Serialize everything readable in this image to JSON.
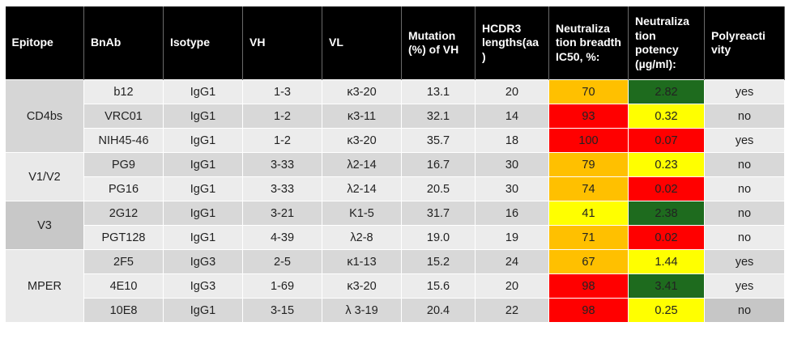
{
  "headers": [
    "Epitope",
    "BnAb",
    "Isotype",
    "VH",
    "VL",
    "Mutation (%) of VH",
    "HCDR3 lengths(aa )",
    "Neutraliza tion breadth IC50, %:",
    "Neutraliza tion potency (µg/ml):",
    "Polyreacti vity"
  ],
  "groups": [
    {
      "epitope": "CD4bs",
      "rows": [
        {
          "bnab": "b12",
          "isotype": "IgG1",
          "vh": "1-3",
          "vl": "κ3-20",
          "mutation": "13.1",
          "hcdr3": "20",
          "breadth": "70",
          "potency": "2.82",
          "poly": "yes",
          "breadth_color": "#ffc000",
          "potency_color": "#1e6b1e"
        },
        {
          "bnab": "VRC01",
          "isotype": "IgG1",
          "vh": "1-2",
          "vl": "κ3-11",
          "mutation": "32.1",
          "hcdr3": "14",
          "breadth": "93",
          "potency": "0.32",
          "poly": "no",
          "breadth_color": "#ff0000",
          "potency_color": "#ffff00"
        },
        {
          "bnab": "NIH45-46",
          "isotype": "IgG1",
          "vh": "1-2",
          "vl": "κ3-20",
          "mutation": "35.7",
          "hcdr3": "18",
          "breadth": "100",
          "potency": "0.07",
          "poly": "yes",
          "breadth_color": "#ff0000",
          "potency_color": "#ff0000"
        }
      ]
    },
    {
      "epitope": "V1/V2",
      "rows": [
        {
          "bnab": "PG9",
          "isotype": "IgG1",
          "vh": "3-33",
          "vl": "λ2-14",
          "mutation": "16.7",
          "hcdr3": "30",
          "breadth": "79",
          "potency": "0.23",
          "poly": "no",
          "breadth_color": "#ffc000",
          "potency_color": "#ffff00"
        },
        {
          "bnab": "PG16",
          "isotype": "IgG1",
          "vh": "3-33",
          "vl": "λ2-14",
          "mutation": "20.5",
          "hcdr3": "30",
          "breadth": "74",
          "potency": "0.02",
          "poly": "no",
          "breadth_color": "#ffc000",
          "potency_color": "#ff0000"
        }
      ]
    },
    {
      "epitope": "V3",
      "rows": [
        {
          "bnab": "2G12",
          "isotype": "IgG1",
          "vh": "3-21",
          "vl": "K1-5",
          "mutation": "31.7",
          "hcdr3": "16",
          "breadth": "41",
          "potency": "2.38",
          "poly": "no",
          "breadth_color": "#ffff00",
          "potency_color": "#1e6b1e"
        },
        {
          "bnab": "PGT128",
          "isotype": "IgG1",
          "vh": "4-39",
          "vl": "λ2-8",
          "mutation": "19.0",
          "hcdr3": "19",
          "breadth": "71",
          "potency": "0.02",
          "poly": "no",
          "breadth_color": "#ffc000",
          "potency_color": "#ff0000"
        }
      ]
    },
    {
      "epitope": "MPER",
      "rows": [
        {
          "bnab": "2F5",
          "isotype": "IgG3",
          "vh": "2-5",
          "vl": "κ1-13",
          "mutation": "15.2",
          "hcdr3": "24",
          "breadth": "67",
          "potency": "1.44",
          "poly": "yes",
          "breadth_color": "#ffc000",
          "potency_color": "#ffff00"
        },
        {
          "bnab": "4E10",
          "isotype": "IgG3",
          "vh": "1-69",
          "vl": "κ3-20",
          "mutation": "15.6",
          "hcdr3": "20",
          "breadth": "98",
          "potency": "3.41",
          "poly": "yes",
          "breadth_color": "#ff0000",
          "potency_color": "#1e6b1e"
        },
        {
          "bnab": "10E8",
          "isotype": "IgG1",
          "vh": "3-15",
          "vl": "λ 3-19",
          "mutation": "20.4",
          "hcdr3": "22",
          "breadth": "98",
          "potency": "0.25",
          "poly": "no",
          "breadth_color": "#ff0000",
          "potency_color": "#ffff00"
        }
      ]
    }
  ]
}
